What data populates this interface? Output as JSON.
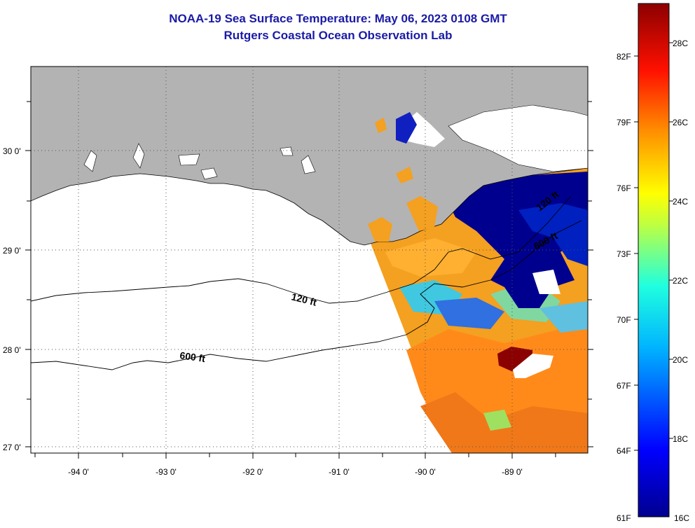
{
  "title": "NOAA-19 Sea Surface Temperature:  May 06, 2023 0108 GMT",
  "subtitle": "Rutgers Coastal Ocean Observation Lab",
  "lat_labels": [
    "30 0'",
    "29 0'",
    "28 0'",
    "27 0'"
  ],
  "lon_labels": [
    "-94 0'",
    "-93 0'",
    "-92 0'",
    "-91 0'",
    "-90 0'",
    "-89 0'"
  ],
  "isobath_labels": [
    "120 ft",
    "600 ft",
    "120 ft",
    "600 ft"
  ],
  "colorbar": {
    "fahrenheit": [
      "82F",
      "79F",
      "76F",
      "73F",
      "70F",
      "67F",
      "64F",
      "61F"
    ],
    "celsius": [
      "28C",
      "26C",
      "24C",
      "22C",
      "20C",
      "18C",
      "16C"
    ]
  },
  "colors": {
    "land": "#b3b3b3",
    "title": "#1a1aa6",
    "cold": "#00008f",
    "warm": "#8b0000"
  }
}
